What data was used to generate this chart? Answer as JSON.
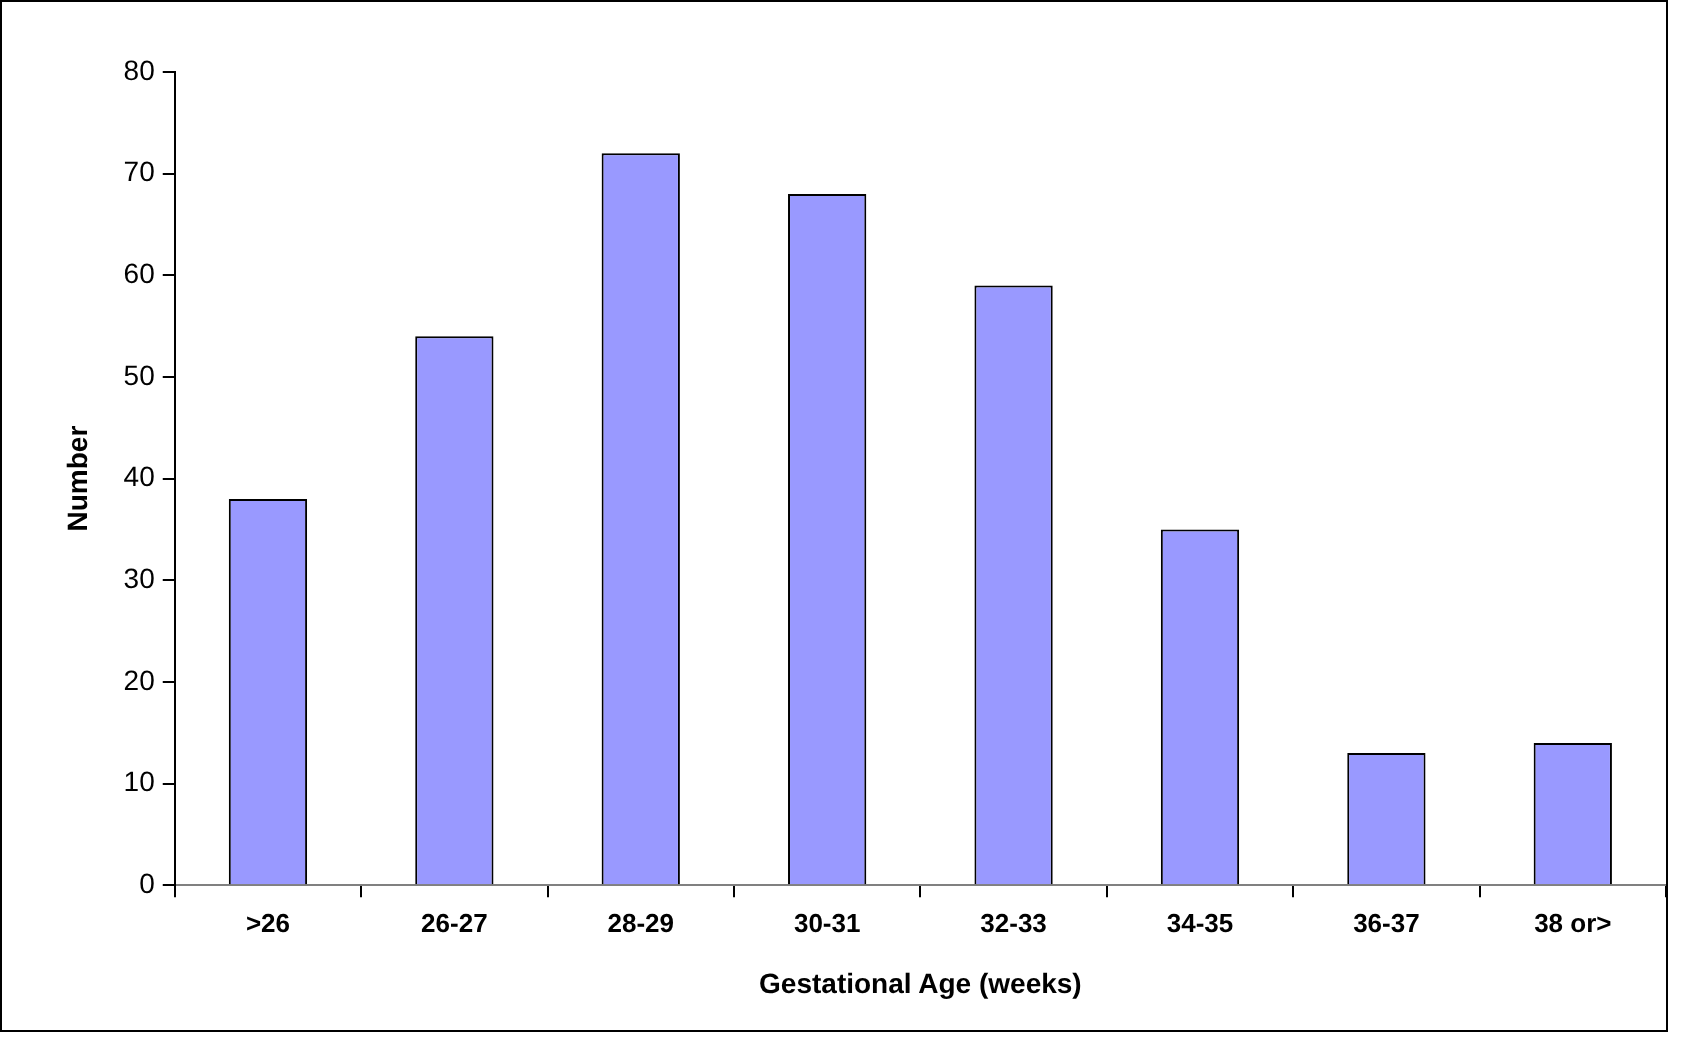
{
  "chart_data": {
    "type": "bar",
    "xlabel": "Gestational Age (weeks)",
    "ylabel": "Number",
    "categories": [
      ">26",
      "26-27",
      "28-29",
      "30-31",
      "32-33",
      "34-35",
      "36-37",
      "38 or>"
    ],
    "values": [
      38,
      54,
      72,
      68,
      59,
      35,
      13,
      14
    ],
    "color": "#9999ff",
    "ylim": [
      0,
      80
    ],
    "yticks": [
      0,
      10,
      20,
      30,
      40,
      50,
      60,
      70,
      80
    ],
    "grid": false,
    "legend": false
  }
}
